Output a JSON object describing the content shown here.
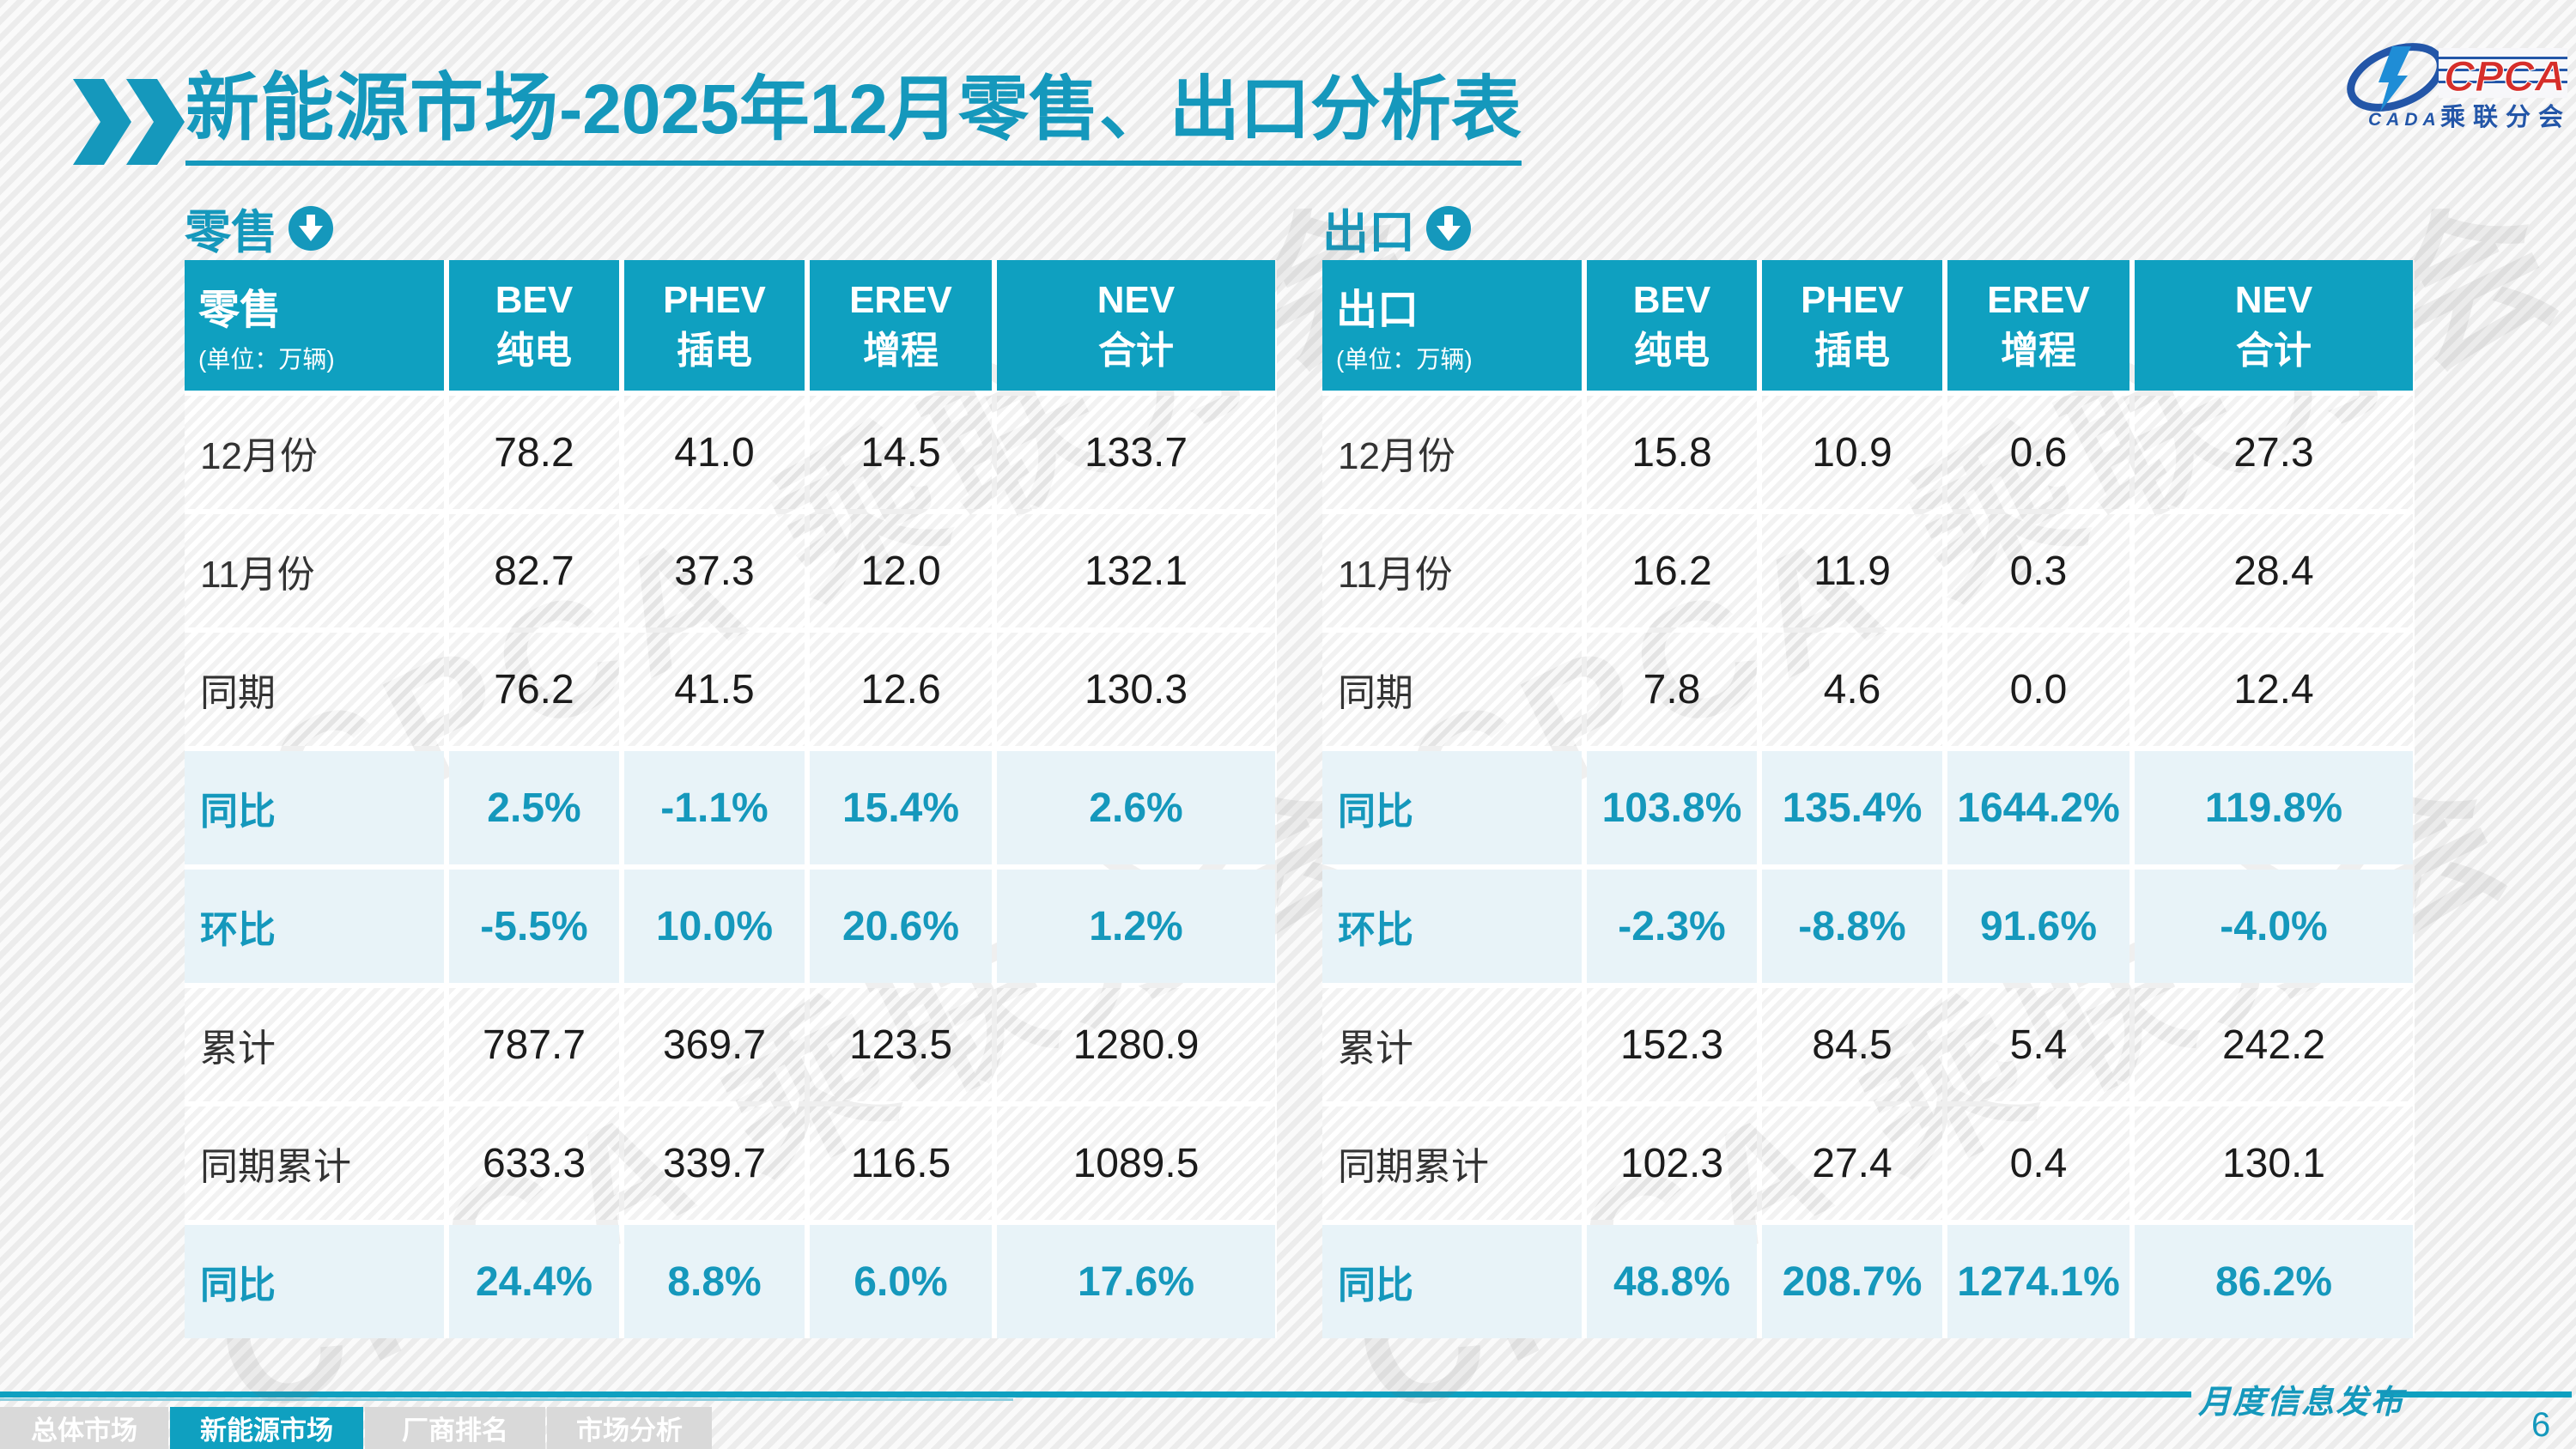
{
  "header": {
    "title_strong": "新能源市场",
    "title_rest": "-2025年12月零售、出口分析表"
  },
  "logo": {
    "cpca": "CPCA",
    "cada": "CADA",
    "subtitle": "乘联分会"
  },
  "watermark": "CPCA 乘联分会",
  "tables": [
    {
      "section_label": "零售",
      "header_label": "零售",
      "unit": "(单位：万辆)",
      "columns": [
        {
          "line1": "BEV",
          "line2": "纯电"
        },
        {
          "line1": "PHEV",
          "line2": "插电"
        },
        {
          "line1": "EREV",
          "line2": "增程"
        },
        {
          "line1": "NEV",
          "line2": "合计"
        }
      ],
      "rows": [
        {
          "label": "12月份",
          "values": [
            "78.2",
            "41.0",
            "14.5",
            "133.7"
          ],
          "highlight": false
        },
        {
          "label": "11月份",
          "values": [
            "82.7",
            "37.3",
            "12.0",
            "132.1"
          ],
          "highlight": false
        },
        {
          "label": "同期",
          "values": [
            "76.2",
            "41.5",
            "12.6",
            "130.3"
          ],
          "highlight": false
        },
        {
          "label": "同比",
          "values": [
            "2.5%",
            "-1.1%",
            "15.4%",
            "2.6%"
          ],
          "highlight": true
        },
        {
          "label": "环比",
          "values": [
            "-5.5%",
            "10.0%",
            "20.6%",
            "1.2%"
          ],
          "highlight": true
        },
        {
          "label": "累计",
          "values": [
            "787.7",
            "369.7",
            "123.5",
            "1280.9"
          ],
          "highlight": false
        },
        {
          "label": "同期累计",
          "values": [
            "633.3",
            "339.7",
            "116.5",
            "1089.5"
          ],
          "highlight": false
        },
        {
          "label": "同比",
          "values": [
            "24.4%",
            "8.8%",
            "6.0%",
            "17.6%"
          ],
          "highlight": true
        }
      ]
    },
    {
      "section_label": "出口",
      "header_label": "出口",
      "unit": "(单位：万辆)",
      "columns": [
        {
          "line1": "BEV",
          "line2": "纯电"
        },
        {
          "line1": "PHEV",
          "line2": "插电"
        },
        {
          "line1": "EREV",
          "line2": "增程"
        },
        {
          "line1": "NEV",
          "line2": "合计"
        }
      ],
      "rows": [
        {
          "label": "12月份",
          "values": [
            "15.8",
            "10.9",
            "0.6",
            "27.3"
          ],
          "highlight": false
        },
        {
          "label": "11月份",
          "values": [
            "16.2",
            "11.9",
            "0.3",
            "28.4"
          ],
          "highlight": false
        },
        {
          "label": "同期",
          "values": [
            "7.8",
            "4.6",
            "0.0",
            "12.4"
          ],
          "highlight": false
        },
        {
          "label": "同比",
          "values": [
            "103.8%",
            "135.4%",
            "1644.2%",
            "119.8%"
          ],
          "highlight": true
        },
        {
          "label": "环比",
          "values": [
            "-2.3%",
            "-8.8%",
            "91.6%",
            "-4.0%"
          ],
          "highlight": true
        },
        {
          "label": "累计",
          "values": [
            "152.3",
            "84.5",
            "5.4",
            "242.2"
          ],
          "highlight": false
        },
        {
          "label": "同期累计",
          "values": [
            "102.3",
            "27.4",
            "0.4",
            "130.1"
          ],
          "highlight": false
        },
        {
          "label": "同比",
          "values": [
            "48.8%",
            "208.7%",
            "1274.1%",
            "86.2%"
          ],
          "highlight": true
        }
      ]
    }
  ],
  "nav": {
    "tabs": [
      {
        "label": "总体市场",
        "active": false
      },
      {
        "label": "新能源市场",
        "active": true
      },
      {
        "label": "厂商排名",
        "active": false
      },
      {
        "label": "市场分析",
        "active": false
      }
    ]
  },
  "footer": {
    "label": "月度信息发布",
    "page_number": "6"
  },
  "colors": {
    "accent": "#0FA0C0",
    "accent_text": "#1598BC",
    "highlight_row_bg": "#E8F3F8",
    "logo_blue": "#2356A8",
    "logo_red": "#D62E2A",
    "tab_inactive_bg": "#D9D9D9"
  }
}
